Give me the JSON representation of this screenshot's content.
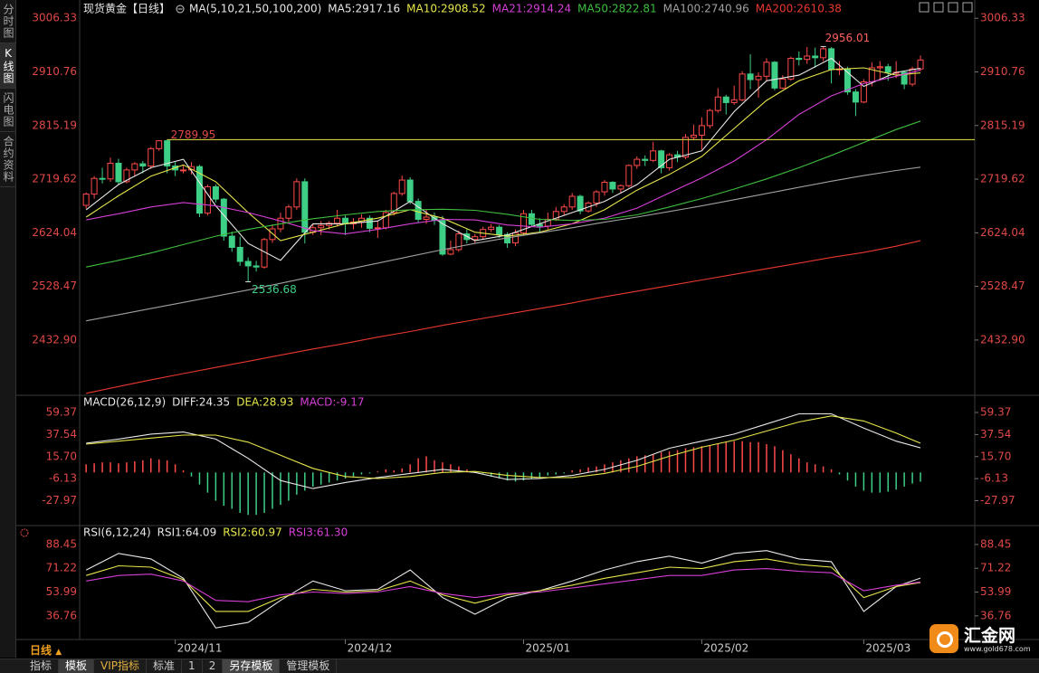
{
  "chart_data": [
    {
      "type": "candlestick",
      "title": "现货黄金【日线】",
      "subtitle": "MA(5,10,21,50,100,200)",
      "ylim": [
        2336,
        3026
      ],
      "yticks": [
        3006.33,
        2910.76,
        2815.19,
        2719.62,
        2624.04,
        2528.47,
        {
          "value": 2432.9,
          "label": "2432.90"
        }
      ],
      "xlim": [
        -0.8,
        109.7
      ],
      "xticks": [
        {
          "value": 11,
          "label": "2024/11"
        },
        {
          "value": 32,
          "label": "2024/12"
        },
        {
          "value": 54,
          "label": "2025/01"
        },
        {
          "value": 76,
          "label": "2025/02"
        },
        {
          "value": 96,
          "label": "2025/03"
        }
      ],
      "up_color": "#ff4a4a",
      "down_color": "#3ecf86",
      "hline": {
        "value": 2789.95,
        "x": 10,
        "color": "#e6e64c"
      },
      "ohlc": [
        [
          2673,
          2696,
          2667,
          2693
        ],
        [
          2693,
          2725,
          2685,
          2721
        ],
        [
          2721,
          2740,
          2712,
          2720
        ],
        [
          2720,
          2758,
          2715,
          2748
        ],
        [
          2748,
          2756,
          2709,
          2715
        ],
        [
          2715,
          2740,
          2712,
          2736
        ],
        [
          2736,
          2750,
          2725,
          2747
        ],
        [
          2747,
          2752,
          2730,
          2743
        ],
        [
          2743,
          2777,
          2738,
          2774
        ],
        [
          2774,
          2789,
          2770,
          2788
        ],
        [
          2788,
          2789.95,
          2730,
          2743
        ],
        [
          2743,
          2750,
          2725,
          2736
        ],
        [
          2736,
          2745,
          2730,
          2736
        ],
        [
          2736,
          2750,
          2728,
          2742
        ],
        [
          2742,
          2745,
          2652,
          2659
        ],
        [
          2659,
          2710,
          2655,
          2706
        ],
        [
          2706,
          2710,
          2678,
          2684
        ],
        [
          2684,
          2686,
          2610,
          2618
        ],
        [
          2618,
          2626,
          2590,
          2598
        ],
        [
          2598,
          2617,
          2565,
          2573
        ],
        [
          2573,
          2580,
          2536.68,
          2565
        ],
        [
          2565,
          2574,
          2555,
          2563
        ],
        [
          2563,
          2615,
          2560,
          2612
        ],
        [
          2612,
          2639,
          2606,
          2631
        ],
        [
          2631,
          2660,
          2625,
          2650
        ],
        [
          2650,
          2674,
          2644,
          2670
        ],
        [
          2670,
          2721,
          2665,
          2715
        ],
        [
          2715,
          2721,
          2605,
          2625
        ],
        [
          2625,
          2640,
          2620,
          2633
        ],
        [
          2633,
          2645,
          2620,
          2637
        ],
        [
          2637,
          2645,
          2630,
          2641
        ],
        [
          2641,
          2665,
          2635,
          2650
        ],
        [
          2650,
          2655,
          2620,
          2640
        ],
        [
          2640,
          2650,
          2630,
          2643
        ],
        [
          2643,
          2657,
          2633,
          2650
        ],
        [
          2650,
          2655,
          2625,
          2632
        ],
        [
          2632,
          2645,
          2615,
          2633
        ],
        [
          2633,
          2665,
          2630,
          2660
        ],
        [
          2660,
          2697,
          2655,
          2694
        ],
        [
          2694,
          2726,
          2690,
          2718
        ],
        [
          2718,
          2723,
          2675,
          2680
        ],
        [
          2680,
          2685,
          2643,
          2648
        ],
        [
          2648,
          2665,
          2640,
          2652
        ],
        [
          2652,
          2660,
          2638,
          2646
        ],
        [
          2646,
          2654,
          2583,
          2586
        ],
        [
          2586,
          2610,
          2584,
          2594
        ],
        [
          2594,
          2628,
          2590,
          2622
        ],
        [
          2622,
          2630,
          2605,
          2612
        ],
        [
          2612,
          2622,
          2605,
          2617
        ],
        [
          2617,
          2635,
          2612,
          2630
        ],
        [
          2630,
          2640,
          2625,
          2634
        ],
        [
          2634,
          2638,
          2615,
          2621
        ],
        [
          2621,
          2625,
          2597,
          2606
        ],
        [
          2606,
          2630,
          2600,
          2624
        ],
        [
          2624,
          2665,
          2620,
          2658
        ],
        [
          2658,
          2665,
          2635,
          2639
        ],
        [
          2639,
          2650,
          2625,
          2636
        ],
        [
          2636,
          2660,
          2630,
          2648
        ],
        [
          2648,
          2670,
          2645,
          2662
        ],
        [
          2662,
          2675,
          2656,
          2670
        ],
        [
          2670,
          2695,
          2665,
          2689
        ],
        [
          2689,
          2692,
          2657,
          2663
        ],
        [
          2663,
          2680,
          2660,
          2677
        ],
        [
          2677,
          2700,
          2670,
          2697
        ],
        [
          2697,
          2718,
          2690,
          2714
        ],
        [
          2714,
          2716,
          2695,
          2702
        ],
        [
          2702,
          2710,
          2695,
          2708
        ],
        [
          2708,
          2746,
          2705,
          2744
        ],
        [
          2744,
          2760,
          2738,
          2755
        ],
        [
          2755,
          2762,
          2743,
          2753
        ],
        [
          2753,
          2786,
          2750,
          2770
        ],
        [
          2770,
          2772,
          2730,
          2740
        ],
        [
          2740,
          2766,
          2735,
          2763
        ],
        [
          2763,
          2770,
          2750,
          2759
        ],
        [
          2759,
          2800,
          2755,
          2794
        ],
        [
          2794,
          2817,
          2790,
          2798
        ],
        [
          2798,
          2830,
          2772,
          2815
        ],
        [
          2815,
          2845,
          2810,
          2842
        ],
        [
          2842,
          2882,
          2838,
          2866
        ],
        [
          2866,
          2870,
          2835,
          2856
        ],
        [
          2856,
          2886,
          2852,
          2861
        ],
        [
          2861,
          2912,
          2858,
          2907
        ],
        [
          2907,
          2942,
          2880,
          2897
        ],
        [
          2897,
          2910,
          2865,
          2903
        ],
        [
          2903,
          2935,
          2895,
          2928
        ],
        [
          2928,
          2930,
          2878,
          2882
        ],
        [
          2882,
          2905,
          2880,
          2898
        ],
        [
          2898,
          2938,
          2895,
          2935
        ],
        [
          2935,
          2947,
          2922,
          2933
        ],
        [
          2933,
          2955,
          2925,
          2939
        ],
        [
          2939,
          2954,
          2918,
          2936
        ],
        [
          2936,
          2956.01,
          2930,
          2952
        ],
        [
          2952,
          2955,
          2890,
          2915
        ],
        [
          2915,
          2930,
          2905,
          2916
        ],
        [
          2916,
          2920,
          2870,
          2875
        ],
        [
          2875,
          2880,
          2832,
          2857
        ],
        [
          2857,
          2898,
          2855,
          2893
        ],
        [
          2893,
          2928,
          2885,
          2918
        ],
        [
          2918,
          2930,
          2895,
          2920
        ],
        [
          2920,
          2925,
          2895,
          2910
        ],
        [
          2910,
          2930,
          2900,
          2910
        ],
        [
          2910,
          2912,
          2880,
          2889
        ],
        [
          2889,
          2920,
          2885,
          2916
        ],
        [
          2916,
          2940,
          2912,
          2932
        ]
      ],
      "x": [
        0,
        4,
        8,
        12,
        16,
        20,
        24,
        28,
        32,
        36,
        40,
        44,
        48,
        52,
        56,
        60,
        64,
        68,
        72,
        76,
        80,
        84,
        88,
        92,
        96,
        100,
        103
      ],
      "series": [
        {
          "label": "MA5:2917.16",
          "color": "#e8e8e8",
          "values": [
            2665,
            2710,
            2740,
            2755,
            2672,
            2605,
            2575,
            2640,
            2640,
            2645,
            2680,
            2640,
            2610,
            2620,
            2640,
            2660,
            2680,
            2710,
            2755,
            2770,
            2840,
            2895,
            2905,
            2935,
            2885,
            2910,
            2917
          ]
        },
        {
          "label": "MA10:2908.52",
          "color": "#e6e64c",
          "values": [
            2652,
            2690,
            2725,
            2745,
            2715,
            2660,
            2610,
            2625,
            2640,
            2650,
            2665,
            2650,
            2625,
            2618,
            2625,
            2640,
            2665,
            2700,
            2728,
            2760,
            2810,
            2860,
            2895,
            2915,
            2918,
            2905,
            2909
          ]
        },
        {
          "label": "MA21:2914.24",
          "color": "#d63fd6",
          "values": [
            2647,
            2658,
            2670,
            2678,
            2672,
            2660,
            2645,
            2628,
            2622,
            2630,
            2640,
            2648,
            2647,
            2638,
            2634,
            2640,
            2650,
            2668,
            2695,
            2722,
            2752,
            2790,
            2835,
            2868,
            2890,
            2903,
            2914
          ]
        },
        {
          "label": "MA50:2822.81",
          "color": "#3fbf3f",
          "values": [
            2563,
            2575,
            2588,
            2603,
            2618,
            2630,
            2640,
            2649,
            2656,
            2662,
            2665,
            2666,
            2664,
            2657,
            2648,
            2646,
            2648,
            2656,
            2670,
            2685,
            2702,
            2720,
            2740,
            2762,
            2785,
            2808,
            2823
          ]
        },
        {
          "label": "MA100:2740.96",
          "color": "#a0a0a0",
          "values": [
            2467,
            2478,
            2489,
            2500,
            2511,
            2522,
            2534,
            2546,
            2558,
            2570,
            2582,
            2594,
            2605,
            2615,
            2624,
            2633,
            2643,
            2652,
            2662,
            2672,
            2683,
            2694,
            2705,
            2716,
            2726,
            2735,
            2741
          ]
        },
        {
          "label": "MA200:2610.38",
          "color": "#e8382f",
          "values": [
            2338,
            2350,
            2362,
            2373,
            2384,
            2395,
            2406,
            2417,
            2427,
            2438,
            2448,
            2459,
            2469,
            2479,
            2489,
            2499,
            2510,
            2520,
            2530,
            2540,
            2550,
            2560,
            2570,
            2580,
            2589,
            2600,
            2610
          ]
        }
      ]
    },
    {
      "type": "macd",
      "title": "MACD(26,12,9)",
      "ylim": [
        -51.7,
        75.5
      ],
      "yticks": [
        59.37,
        37.54,
        {
          "value": 15.7,
          "label": "15.70"
        },
        -6.13,
        -27.97
      ],
      "x": [
        0,
        4,
        8,
        12,
        16,
        20,
        24,
        28,
        32,
        36,
        40,
        44,
        48,
        52,
        56,
        60,
        64,
        68,
        72,
        76,
        80,
        84,
        88,
        92,
        96,
        100,
        103
      ],
      "series": [
        {
          "label": "DIFF:24.35",
          "color": "#e8e8e8",
          "values": [
            29,
            33,
            38,
            40,
            33,
            14,
            -8,
            -16,
            -10,
            -5,
            -1,
            3,
            0,
            -7,
            -6,
            -3,
            3,
            12,
            24,
            31,
            38,
            48,
            58,
            58,
            44,
            31,
            24.35
          ]
        },
        {
          "label": "DEA:28.93",
          "color": "#e6e64c",
          "values": [
            28,
            31,
            34,
            37,
            37,
            30,
            17,
            4,
            -4,
            -6,
            -4,
            0,
            1,
            -3,
            -5,
            -5,
            -1,
            6,
            16,
            25,
            32,
            41,
            50,
            56,
            51,
            39,
            28.93
          ]
        }
      ],
      "histogram": {
        "label": "MACD:-9.17",
        "color": "#d63fd6",
        "up_color": "#ff4a4a",
        "down_color": "#3ecf86",
        "values": [
          8,
          9,
          10,
          10,
          9,
          10,
          11,
          12,
          14,
          13,
          12,
          8,
          2,
          -4,
          -12,
          -20,
          -28,
          -33,
          -36,
          -40,
          -42,
          -42,
          -40,
          -36,
          -32,
          -28,
          -22,
          -18,
          -14,
          -12,
          -10,
          -8,
          -6,
          -4,
          -2,
          -1,
          1,
          3,
          2,
          4,
          8,
          14,
          16,
          12,
          10,
          8,
          6,
          3,
          1,
          -1,
          -4,
          -6,
          -8,
          -9,
          -8,
          -6,
          -5,
          -3,
          -2,
          -1,
          2,
          3,
          5,
          6,
          8,
          10,
          12,
          14,
          16,
          17,
          18,
          20,
          21,
          22,
          24,
          25,
          26,
          27,
          28,
          30,
          31,
          31,
          30,
          30,
          28,
          26,
          22,
          18,
          14,
          10,
          8,
          6,
          3,
          -2,
          -8,
          -14,
          -18,
          -20,
          -20,
          -19,
          -17,
          -14,
          -11,
          -9.17
        ]
      }
    },
    {
      "type": "line",
      "title": "RSI(6,12,24)",
      "ylim": [
        20.3,
        101.5
      ],
      "yticks": [
        88.45,
        71.22,
        53.99,
        36.76
      ],
      "x": [
        0,
        4,
        8,
        12,
        16,
        20,
        24,
        28,
        32,
        36,
        40,
        44,
        48,
        52,
        56,
        60,
        64,
        68,
        72,
        76,
        80,
        84,
        88,
        92,
        96,
        100,
        103
      ],
      "series": [
        {
          "label": "RSI1:64.09",
          "color": "#e8e8e8",
          "values": [
            70,
            82,
            78,
            64,
            28,
            32,
            48,
            62,
            55,
            56,
            70,
            50,
            38,
            50,
            55,
            62,
            70,
            76,
            80,
            75,
            82,
            84,
            78,
            76,
            40,
            58,
            64.09
          ]
        },
        {
          "label": "RSI2:60.97",
          "color": "#e6e64c",
          "values": [
            66,
            73,
            72,
            63,
            40,
            40,
            50,
            56,
            54,
            55,
            62,
            52,
            46,
            52,
            55,
            59,
            64,
            68,
            72,
            71,
            76,
            78,
            74,
            72,
            50,
            58,
            60.97
          ]
        },
        {
          "label": "RSI3:61.30",
          "color": "#d63fd6",
          "values": [
            62,
            66,
            67,
            62,
            48,
            47,
            52,
            54,
            53,
            54,
            58,
            53,
            50,
            53,
            54,
            57,
            60,
            63,
            66,
            66,
            70,
            71,
            69,
            68,
            55,
            59,
            61.3
          ]
        }
      ]
    }
  ],
  "ui": {
    "sidebar": [
      "分时图",
      "K线图",
      "闪电图",
      "合约资料"
    ],
    "period": "日线",
    "toolbar": [
      "指标",
      "模板",
      "VIP指标",
      "标准",
      "1",
      "2",
      "另存模板",
      "管理模板"
    ],
    "logo": "汇金网",
    "logo_url": "www.gold678.com"
  }
}
